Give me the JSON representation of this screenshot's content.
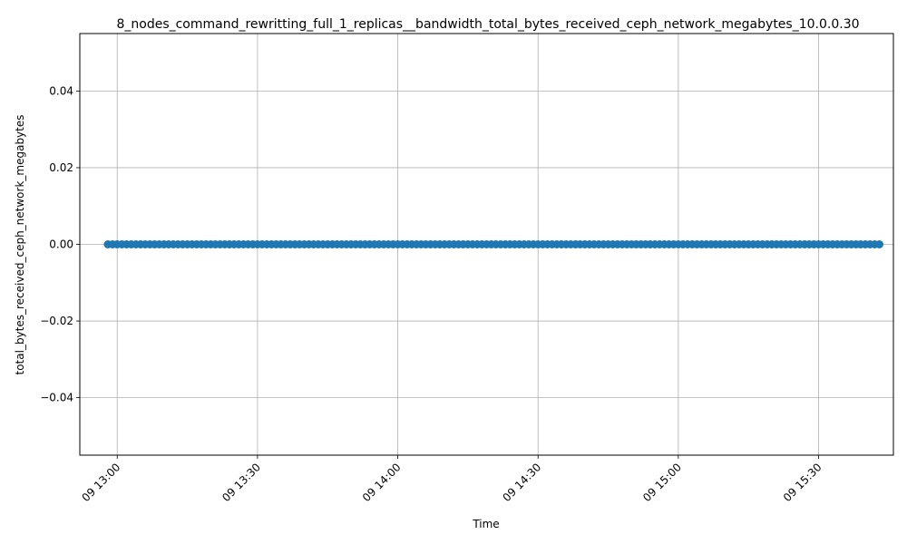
{
  "chart_data": {
    "type": "scatter",
    "title": "8_nodes_command_rewritting_full_1_replicas__bandwidth_total_bytes_received_ceph_network_megabytes_10.0.0.30",
    "xlabel": "Time",
    "ylabel": "total_bytes_received_ceph_network_megabytes",
    "x_range": [
      "09 12:58",
      "09 15:43"
    ],
    "xlim": [
      "09 12:52",
      "09 15:46"
    ],
    "ylim": [
      -0.055,
      0.055
    ],
    "x_ticks": [
      "09 13:00",
      "09 13:30",
      "09 14:00",
      "09 14:30",
      "09 15:00",
      "09 15:30"
    ],
    "y_ticks": [
      "0.04",
      "0.02",
      "0.00",
      "−0.02",
      "−0.04"
    ],
    "y_tick_values": [
      0.04,
      0.02,
      0.0,
      -0.02,
      -0.04
    ],
    "x_interval_minutes": 1,
    "y_value": 0.0,
    "grid": true,
    "line_style": "line with circle markers",
    "color": "#1f77b4"
  }
}
